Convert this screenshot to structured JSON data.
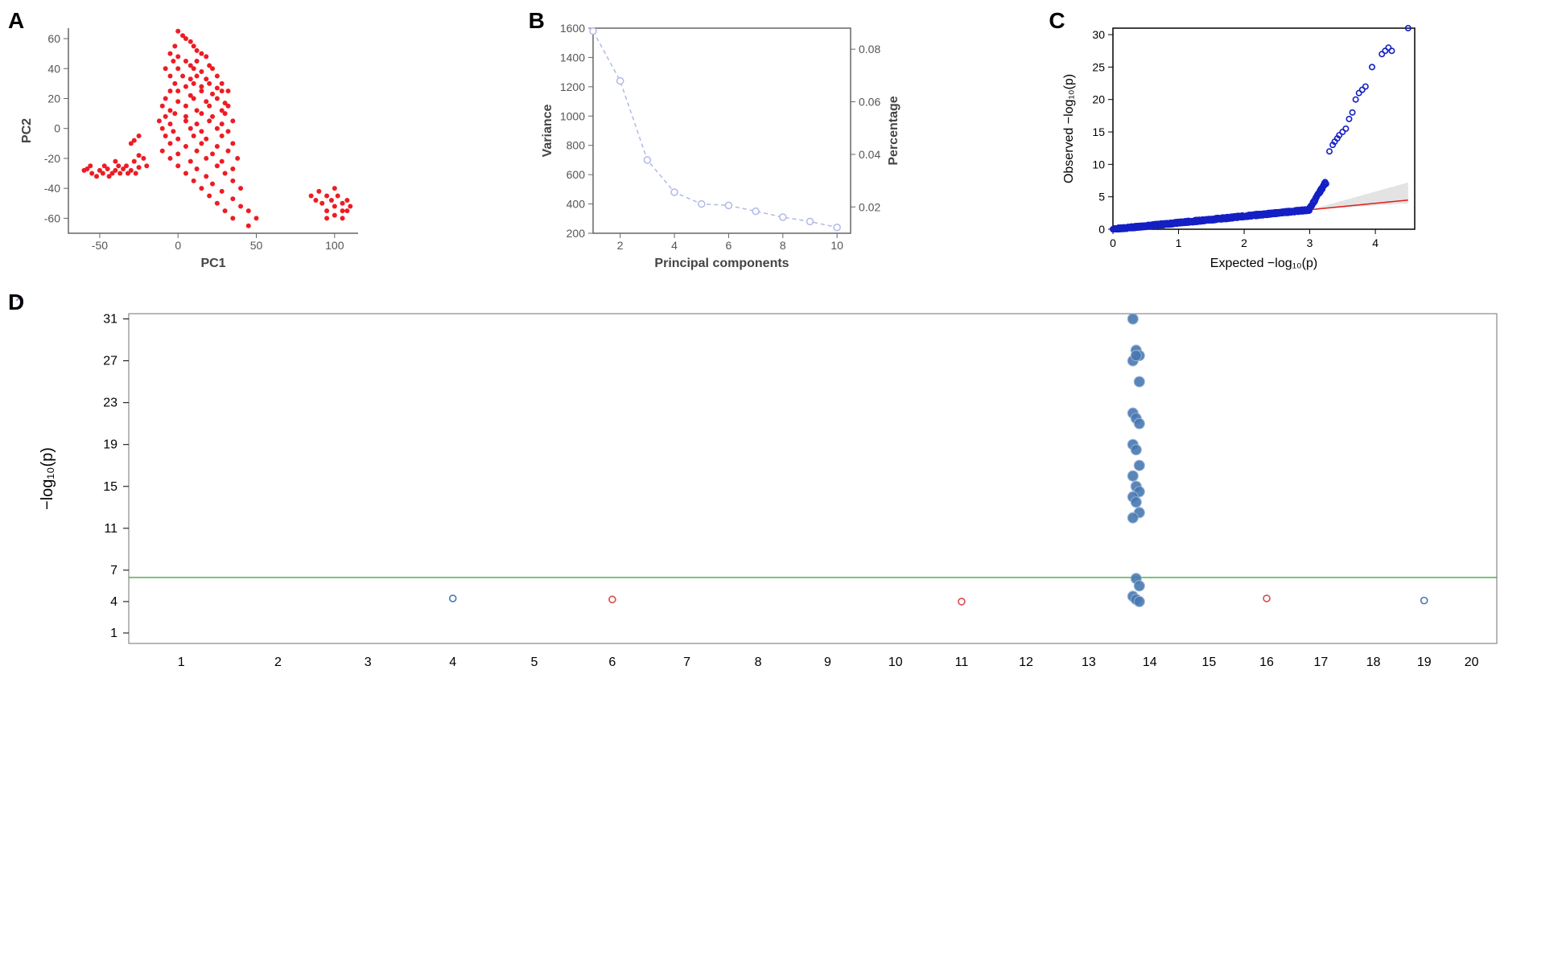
{
  "panelA": {
    "label": "A",
    "type": "scatter",
    "xlabel": "PC1",
    "ylabel": "PC2",
    "xlim": [
      -70,
      115
    ],
    "ylim": [
      -70,
      67
    ],
    "xticks": [
      -50,
      0,
      50,
      100
    ],
    "yticks": [
      -60,
      -40,
      -20,
      0,
      20,
      40,
      60
    ],
    "point_color": "#ed1c24",
    "point_size": 3,
    "axis_color": "#666666",
    "label_fontsize": 16,
    "tick_fontsize": 14,
    "points": [
      [
        -60,
        -28
      ],
      [
        -58,
        -27
      ],
      [
        -55,
        -30
      ],
      [
        -56,
        -25
      ],
      [
        -52,
        -32
      ],
      [
        -50,
        -28
      ],
      [
        -48,
        -30
      ],
      [
        -47,
        -25
      ],
      [
        -45,
        -27
      ],
      [
        -44,
        -32
      ],
      [
        -42,
        -30
      ],
      [
        -40,
        -28
      ],
      [
        -40,
        -22
      ],
      [
        -38,
        -25
      ],
      [
        -37,
        -30
      ],
      [
        -35,
        -27
      ],
      [
        -33,
        -25
      ],
      [
        -32,
        -30
      ],
      [
        -30,
        -28
      ],
      [
        -28,
        -22
      ],
      [
        -27,
        -30
      ],
      [
        -25,
        -18
      ],
      [
        -25,
        -26
      ],
      [
        -22,
        -20
      ],
      [
        -20,
        -25
      ],
      [
        -30,
        -10
      ],
      [
        -28,
        -8
      ],
      [
        -25,
        -5
      ],
      [
        0,
        65
      ],
      [
        5,
        60
      ],
      [
        3,
        62
      ],
      [
        8,
        58
      ],
      [
        -2,
        55
      ],
      [
        10,
        55
      ],
      [
        12,
        52
      ],
      [
        -5,
        50
      ],
      [
        0,
        48
      ],
      [
        15,
        50
      ],
      [
        -3,
        45
      ],
      [
        5,
        45
      ],
      [
        8,
        42
      ],
      [
        12,
        45
      ],
      [
        18,
        48
      ],
      [
        -8,
        40
      ],
      [
        0,
        40
      ],
      [
        10,
        40
      ],
      [
        15,
        38
      ],
      [
        20,
        42
      ],
      [
        22,
        40
      ],
      [
        -5,
        35
      ],
      [
        3,
        35
      ],
      [
        8,
        33
      ],
      [
        12,
        35
      ],
      [
        18,
        33
      ],
      [
        25,
        35
      ],
      [
        -2,
        30
      ],
      [
        5,
        28
      ],
      [
        10,
        30
      ],
      [
        15,
        28
      ],
      [
        20,
        30
      ],
      [
        25,
        27
      ],
      [
        28,
        30
      ],
      [
        -5,
        25
      ],
      [
        0,
        25
      ],
      [
        8,
        22
      ],
      [
        15,
        25
      ],
      [
        22,
        23
      ],
      [
        28,
        25
      ],
      [
        32,
        25
      ],
      [
        -8,
        20
      ],
      [
        0,
        18
      ],
      [
        10,
        20
      ],
      [
        18,
        18
      ],
      [
        25,
        20
      ],
      [
        30,
        17
      ],
      [
        -10,
        15
      ],
      [
        -5,
        12
      ],
      [
        5,
        15
      ],
      [
        12,
        12
      ],
      [
        20,
        15
      ],
      [
        28,
        12
      ],
      [
        32,
        15
      ],
      [
        -8,
        8
      ],
      [
        -2,
        10
      ],
      [
        5,
        8
      ],
      [
        15,
        10
      ],
      [
        22,
        8
      ],
      [
        30,
        10
      ],
      [
        -12,
        5
      ],
      [
        -5,
        3
      ],
      [
        5,
        5
      ],
      [
        12,
        3
      ],
      [
        20,
        5
      ],
      [
        28,
        3
      ],
      [
        35,
        5
      ],
      [
        -10,
        0
      ],
      [
        -3,
        -2
      ],
      [
        8,
        0
      ],
      [
        15,
        -2
      ],
      [
        25,
        0
      ],
      [
        32,
        -2
      ],
      [
        -8,
        -5
      ],
      [
        0,
        -7
      ],
      [
        10,
        -5
      ],
      [
        18,
        -7
      ],
      [
        28,
        -5
      ],
      [
        -5,
        -10
      ],
      [
        5,
        -12
      ],
      [
        15,
        -10
      ],
      [
        25,
        -12
      ],
      [
        35,
        -10
      ],
      [
        -10,
        -15
      ],
      [
        0,
        -17
      ],
      [
        12,
        -15
      ],
      [
        22,
        -17
      ],
      [
        32,
        -15
      ],
      [
        -5,
        -20
      ],
      [
        8,
        -22
      ],
      [
        18,
        -20
      ],
      [
        28,
        -22
      ],
      [
        38,
        -20
      ],
      [
        0,
        -25
      ],
      [
        12,
        -27
      ],
      [
        25,
        -25
      ],
      [
        35,
        -27
      ],
      [
        5,
        -30
      ],
      [
        18,
        -32
      ],
      [
        30,
        -30
      ],
      [
        10,
        -35
      ],
      [
        22,
        -37
      ],
      [
        35,
        -35
      ],
      [
        15,
        -40
      ],
      [
        28,
        -42
      ],
      [
        40,
        -40
      ],
      [
        20,
        -45
      ],
      [
        35,
        -47
      ],
      [
        25,
        -50
      ],
      [
        40,
        -52
      ],
      [
        30,
        -55
      ],
      [
        45,
        -55
      ],
      [
        35,
        -60
      ],
      [
        50,
        -60
      ],
      [
        45,
        -65
      ],
      [
        85,
        -45
      ],
      [
        88,
        -48
      ],
      [
        90,
        -42
      ],
      [
        92,
        -50
      ],
      [
        95,
        -45
      ],
      [
        95,
        -55
      ],
      [
        98,
        -48
      ],
      [
        100,
        -52
      ],
      [
        102,
        -45
      ],
      [
        105,
        -50
      ],
      [
        100,
        -40
      ],
      [
        105,
        -55
      ],
      [
        108,
        -48
      ],
      [
        110,
        -52
      ],
      [
        100,
        -58
      ],
      [
        105,
        -60
      ],
      [
        95,
        -60
      ],
      [
        108,
        -55
      ]
    ]
  },
  "panelB": {
    "label": "B",
    "type": "line",
    "xlabel": "Principal components",
    "ylabel_left": "Variance",
    "ylabel_right": "Percentage",
    "xlim": [
      1,
      10.5
    ],
    "ylim_left": [
      200,
      1600
    ],
    "ylim_right": [
      0.01,
      0.088
    ],
    "xticks": [
      2,
      4,
      6,
      8,
      10
    ],
    "yticks_left": [
      200,
      400,
      600,
      800,
      1000,
      1200,
      1400,
      1600
    ],
    "yticks_right": [
      0.02,
      0.04,
      0.06,
      0.08
    ],
    "line_color": "#b0b8e8",
    "marker_style": "open_circle",
    "marker_size": 4,
    "dash": "5,4",
    "axis_color": "#666666",
    "label_fontsize": 16,
    "tick_fontsize": 14,
    "data": [
      [
        1,
        1580
      ],
      [
        2,
        1240
      ],
      [
        3,
        700
      ],
      [
        4,
        480
      ],
      [
        5,
        400
      ],
      [
        6,
        390
      ],
      [
        7,
        350
      ],
      [
        8,
        310
      ],
      [
        9,
        280
      ],
      [
        10,
        240
      ]
    ]
  },
  "panelC": {
    "label": "C",
    "type": "qqplot",
    "xlabel": "Expected  −log₁₀(p)",
    "ylabel": "Observed  −log₁₀(p)",
    "xlim": [
      0,
      4.6
    ],
    "ylim": [
      0,
      31
    ],
    "xticks": [
      0,
      1,
      2,
      3,
      4
    ],
    "yticks": [
      0,
      5,
      10,
      15,
      20,
      25,
      30
    ],
    "point_color": "#1520c4",
    "point_fill": "none",
    "line_color": "#e01b1b",
    "ci_color": "#cccccc",
    "axis_color": "#000000",
    "label_fontsize": 16,
    "tick_fontsize": 14,
    "diag_line": [
      [
        0,
        0
      ],
      [
        4.5,
        4.5
      ]
    ],
    "ci_polygon": [
      [
        3.0,
        3.0
      ],
      [
        4.5,
        4.0
      ],
      [
        4.5,
        7.2
      ],
      [
        3.0,
        3.0
      ]
    ]
  },
  "panelD": {
    "label": "D",
    "type": "manhattan",
    "ylabel": "−log₁₀(p)",
    "ylim": [
      0,
      31.5
    ],
    "yticks": [
      1,
      4,
      7,
      11,
      15,
      19,
      23,
      27,
      31
    ],
    "chromosomes": [
      1,
      2,
      3,
      4,
      5,
      6,
      7,
      8,
      9,
      10,
      11,
      12,
      13,
      14,
      15,
      16,
      17,
      18,
      19,
      20
    ],
    "threshold_y": 6.3,
    "threshold_color": "#2ca02c",
    "border_color": "#888888",
    "axis_color": "#000000",
    "label_fontsize": 20,
    "tick_fontsize": 16,
    "chrom_colors": [
      "#d94c4c",
      "#6fae4e",
      "#e7b53b",
      "#4878b2",
      "#b288c1",
      "#d94c4c",
      "#6fae4e",
      "#e7b53b",
      "#4878b2",
      "#b288c1",
      "#d94c4c",
      "#6fae4e",
      "#e7b53b",
      "#4878b2",
      "#b288c1",
      "#d94c4c",
      "#6fae4e",
      "#e7b53b",
      "#4878b2",
      "#b288c1"
    ],
    "chrom_widths": [
      1.4,
      1.3,
      1.2,
      1.15,
      1.1,
      1.05,
      1.0,
      0.95,
      0.95,
      0.9,
      0.9,
      0.85,
      0.85,
      0.8,
      0.8,
      0.75,
      0.7,
      0.7,
      0.65,
      0.6
    ],
    "notable_hits": {
      "chrom": 14,
      "color": "#4878b2",
      "y_values": [
        31,
        28,
        27.5,
        27,
        27.5,
        25,
        22,
        21.5,
        21,
        19,
        18.5,
        17,
        16,
        15,
        14.5,
        14,
        13.5,
        12.5,
        12,
        6.2,
        5.5,
        4.5,
        4.2,
        4.0
      ]
    },
    "outliers": [
      {
        "chrom": 4,
        "y": 4.3,
        "color": "#4878b2"
      },
      {
        "chrom": 6,
        "y": 4.2,
        "color": "#d94c4c"
      },
      {
        "chrom": 11,
        "y": 4.0,
        "color": "#d94c4c"
      },
      {
        "chrom": 16,
        "y": 4.3,
        "color": "#d94c4c"
      },
      {
        "chrom": 19,
        "y": 4.1,
        "color": "#4878b2"
      }
    ]
  }
}
